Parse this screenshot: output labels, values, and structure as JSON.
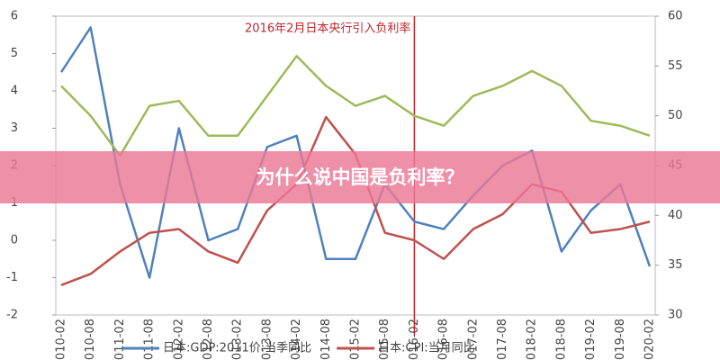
{
  "chart_data": {
    "type": "line",
    "overlay_title": "为什么说中国是负利率？",
    "annotation": {
      "text": "2016年2月日本央行引入负利率",
      "x": "2016-02",
      "color": "#c0272d"
    },
    "categories": [
      "2010-02",
      "2010-08",
      "2011-02",
      "2011-08",
      "2012-02",
      "2012-08",
      "2013-02",
      "2013-08",
      "2014-02",
      "2014-08",
      "2015-02",
      "2015-08",
      "2016-02",
      "2016-08",
      "2017-02",
      "2017-08",
      "2018-02",
      "2018-08",
      "2019-02",
      "2019-08",
      "2020-02"
    ],
    "series": [
      {
        "name": "日本:GDP:2011价:当季同比",
        "color": "#4f81bd",
        "values": [
          4.5,
          5.7,
          1.5,
          -1.0,
          3.0,
          0.0,
          0.3,
          2.5,
          2.8,
          -0.5,
          -0.5,
          1.5,
          0.5,
          0.3,
          1.2,
          2.0,
          2.4,
          -0.3,
          0.8,
          1.5,
          -0.7
        ]
      },
      {
        "name": "日本:CPI:当月同比",
        "color": "#c0504d",
        "values": [
          -1.2,
          -0.9,
          -0.3,
          0.2,
          0.3,
          -0.3,
          -0.6,
          0.8,
          1.5,
          3.3,
          2.3,
          0.2,
          0.0,
          -0.5,
          0.3,
          0.7,
          1.5,
          1.3,
          0.2,
          0.3,
          0.5
        ]
      },
      {
        "color": "#9bbb59",
        "axis": "y2",
        "values": [
          53,
          50,
          46,
          51,
          51.5,
          48,
          48,
          52,
          56,
          53,
          51,
          52,
          50,
          49,
          52,
          53,
          54.5,
          53,
          49.5,
          49,
          48
        ]
      }
    ],
    "ylim": [
      -2,
      6
    ],
    "yticks": [
      -2,
      -1,
      0,
      1,
      2,
      3,
      4,
      5,
      6
    ],
    "y2lim": [
      30,
      60
    ],
    "y2ticks": [
      30,
      35,
      40,
      45,
      50,
      55,
      60
    ]
  }
}
